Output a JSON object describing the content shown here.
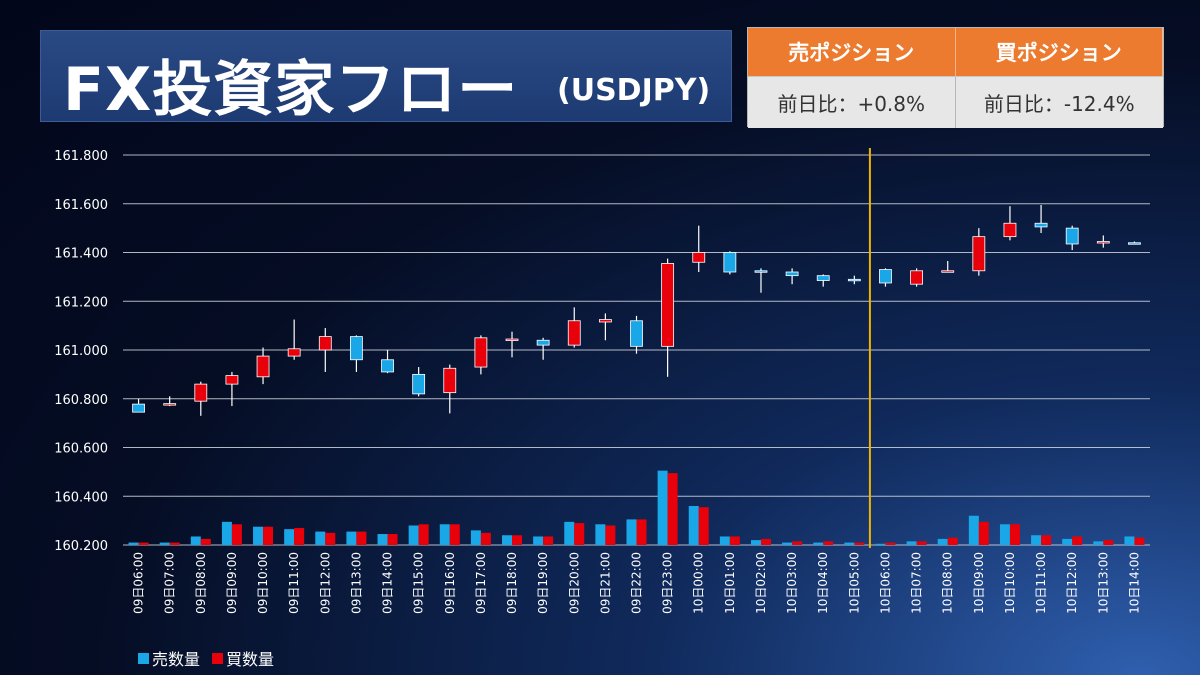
{
  "header": {
    "title": "FX投資家フロー",
    "subtitle": "(USDJPY)"
  },
  "positions": {
    "sell_label": "売ポジション",
    "buy_label": "買ポジション",
    "sell_change": "前日比：+0.8%",
    "buy_change": "前日比：-12.4%"
  },
  "colors": {
    "sell": "#1aa7e8",
    "buy": "#e8000b",
    "divider": "#f0b400",
    "gridline": "#d0d6e0",
    "header_accent": "#ec7b2f"
  },
  "chart_data": {
    "type": "candlestick+bar",
    "y_axis": {
      "min": 160.2,
      "max": 161.8,
      "ticks": [
        "161.800",
        "161.600",
        "161.400",
        "161.200",
        "161.000",
        "160.800",
        "160.600",
        "160.400",
        "160.200"
      ],
      "tick_values": [
        161.8,
        161.6,
        161.4,
        161.2,
        161.0,
        160.8,
        160.6,
        160.4,
        160.2
      ]
    },
    "categories": [
      "09日06:00",
      "09日07:00",
      "09日08:00",
      "09日09:00",
      "09日10:00",
      "09日11:00",
      "09日12:00",
      "09日13:00",
      "09日14:00",
      "09日15:00",
      "09日16:00",
      "09日17:00",
      "09日18:00",
      "09日19:00",
      "09日20:00",
      "09日21:00",
      "09日22:00",
      "09日23:00",
      "10日00:00",
      "10日01:00",
      "10日02:00",
      "10日03:00",
      "10日04:00",
      "10日05:00",
      "10日06:00",
      "10日07:00",
      "10日08:00",
      "10日09:00",
      "10日10:00",
      "10日11:00",
      "10日12:00",
      "10日13:00",
      "10日14:00"
    ],
    "ohlc": [
      {
        "o": 160.778,
        "h": 160.8,
        "l": 160.755,
        "c": 160.745
      },
      {
        "o": 160.78,
        "h": 160.81,
        "l": 160.77,
        "c": 160.78
      },
      {
        "o": 160.79,
        "h": 160.87,
        "l": 160.73,
        "c": 160.86
      },
      {
        "o": 160.86,
        "h": 160.91,
        "l": 160.77,
        "c": 160.895
      },
      {
        "o": 160.89,
        "h": 161.01,
        "l": 160.86,
        "c": 160.975
      },
      {
        "o": 160.975,
        "h": 161.125,
        "l": 160.96,
        "c": 161.005
      },
      {
        "o": 161.0,
        "h": 161.09,
        "l": 160.91,
        "c": 161.055
      },
      {
        "o": 161.055,
        "h": 161.06,
        "l": 160.91,
        "c": 160.96
      },
      {
        "o": 160.96,
        "h": 161.0,
        "l": 160.905,
        "c": 160.91
      },
      {
        "o": 160.9,
        "h": 160.93,
        "l": 160.81,
        "c": 160.82
      },
      {
        "o": 160.825,
        "h": 160.94,
        "l": 160.74,
        "c": 160.925
      },
      {
        "o": 160.93,
        "h": 161.06,
        "l": 160.9,
        "c": 161.05
      },
      {
        "o": 161.04,
        "h": 161.075,
        "l": 160.97,
        "c": 161.045
      },
      {
        "o": 161.04,
        "h": 161.05,
        "l": 160.96,
        "c": 161.02
      },
      {
        "o": 161.02,
        "h": 161.175,
        "l": 161.01,
        "c": 161.12
      },
      {
        "o": 161.115,
        "h": 161.15,
        "l": 161.04,
        "c": 161.125
      },
      {
        "o": 161.12,
        "h": 161.14,
        "l": 160.985,
        "c": 161.015
      },
      {
        "o": 161.015,
        "h": 161.375,
        "l": 160.89,
        "c": 161.355
      },
      {
        "o": 161.36,
        "h": 161.51,
        "l": 161.32,
        "c": 161.4
      },
      {
        "o": 161.4,
        "h": 161.405,
        "l": 161.31,
        "c": 161.32
      },
      {
        "o": 161.325,
        "h": 161.335,
        "l": 161.235,
        "c": 161.32
      },
      {
        "o": 161.32,
        "h": 161.335,
        "l": 161.27,
        "c": 161.305
      },
      {
        "o": 161.305,
        "h": 161.31,
        "l": 161.26,
        "c": 161.285
      },
      {
        "o": 161.29,
        "h": 161.305,
        "l": 161.27,
        "c": 161.285
      },
      {
        "o": 161.33,
        "h": 161.335,
        "l": 161.26,
        "c": 161.275
      },
      {
        "o": 161.27,
        "h": 161.335,
        "l": 161.26,
        "c": 161.325
      },
      {
        "o": 161.325,
        "h": 161.365,
        "l": 161.32,
        "c": 161.325
      },
      {
        "o": 161.325,
        "h": 161.5,
        "l": 161.305,
        "c": 161.465
      },
      {
        "o": 161.465,
        "h": 161.59,
        "l": 161.45,
        "c": 161.52
      },
      {
        "o": 161.52,
        "h": 161.595,
        "l": 161.48,
        "c": 161.505
      },
      {
        "o": 161.5,
        "h": 161.51,
        "l": 161.41,
        "c": 161.435
      },
      {
        "o": 161.44,
        "h": 161.47,
        "l": 161.42,
        "c": 161.445
      },
      {
        "o": 161.44,
        "h": 161.445,
        "l": 161.435,
        "c": 161.435
      }
    ],
    "series": [
      {
        "name": "売数量",
        "values": [
          160.21,
          160.21,
          160.235,
          160.295,
          160.275,
          160.265,
          160.255,
          160.255,
          160.245,
          160.28,
          160.285,
          160.26,
          160.24,
          160.235,
          160.295,
          160.285,
          160.305,
          160.505,
          160.36,
          160.235,
          160.22,
          160.21,
          160.21,
          160.21,
          160.205,
          160.215,
          160.225,
          160.32,
          160.285,
          160.24,
          160.225,
          160.215,
          160.235
        ]
      },
      {
        "name": "買数量",
        "values": [
          160.21,
          160.21,
          160.225,
          160.285,
          160.275,
          160.27,
          160.25,
          160.255,
          160.245,
          160.285,
          160.285,
          160.25,
          160.24,
          160.235,
          160.29,
          160.28,
          160.305,
          160.495,
          160.355,
          160.235,
          160.225,
          160.215,
          160.215,
          160.21,
          160.21,
          160.215,
          160.23,
          160.295,
          160.285,
          160.24,
          160.235,
          160.22,
          160.23
        ]
      }
    ],
    "divider_after_index": 23.5,
    "legend": [
      "売数量",
      "買数量"
    ]
  }
}
